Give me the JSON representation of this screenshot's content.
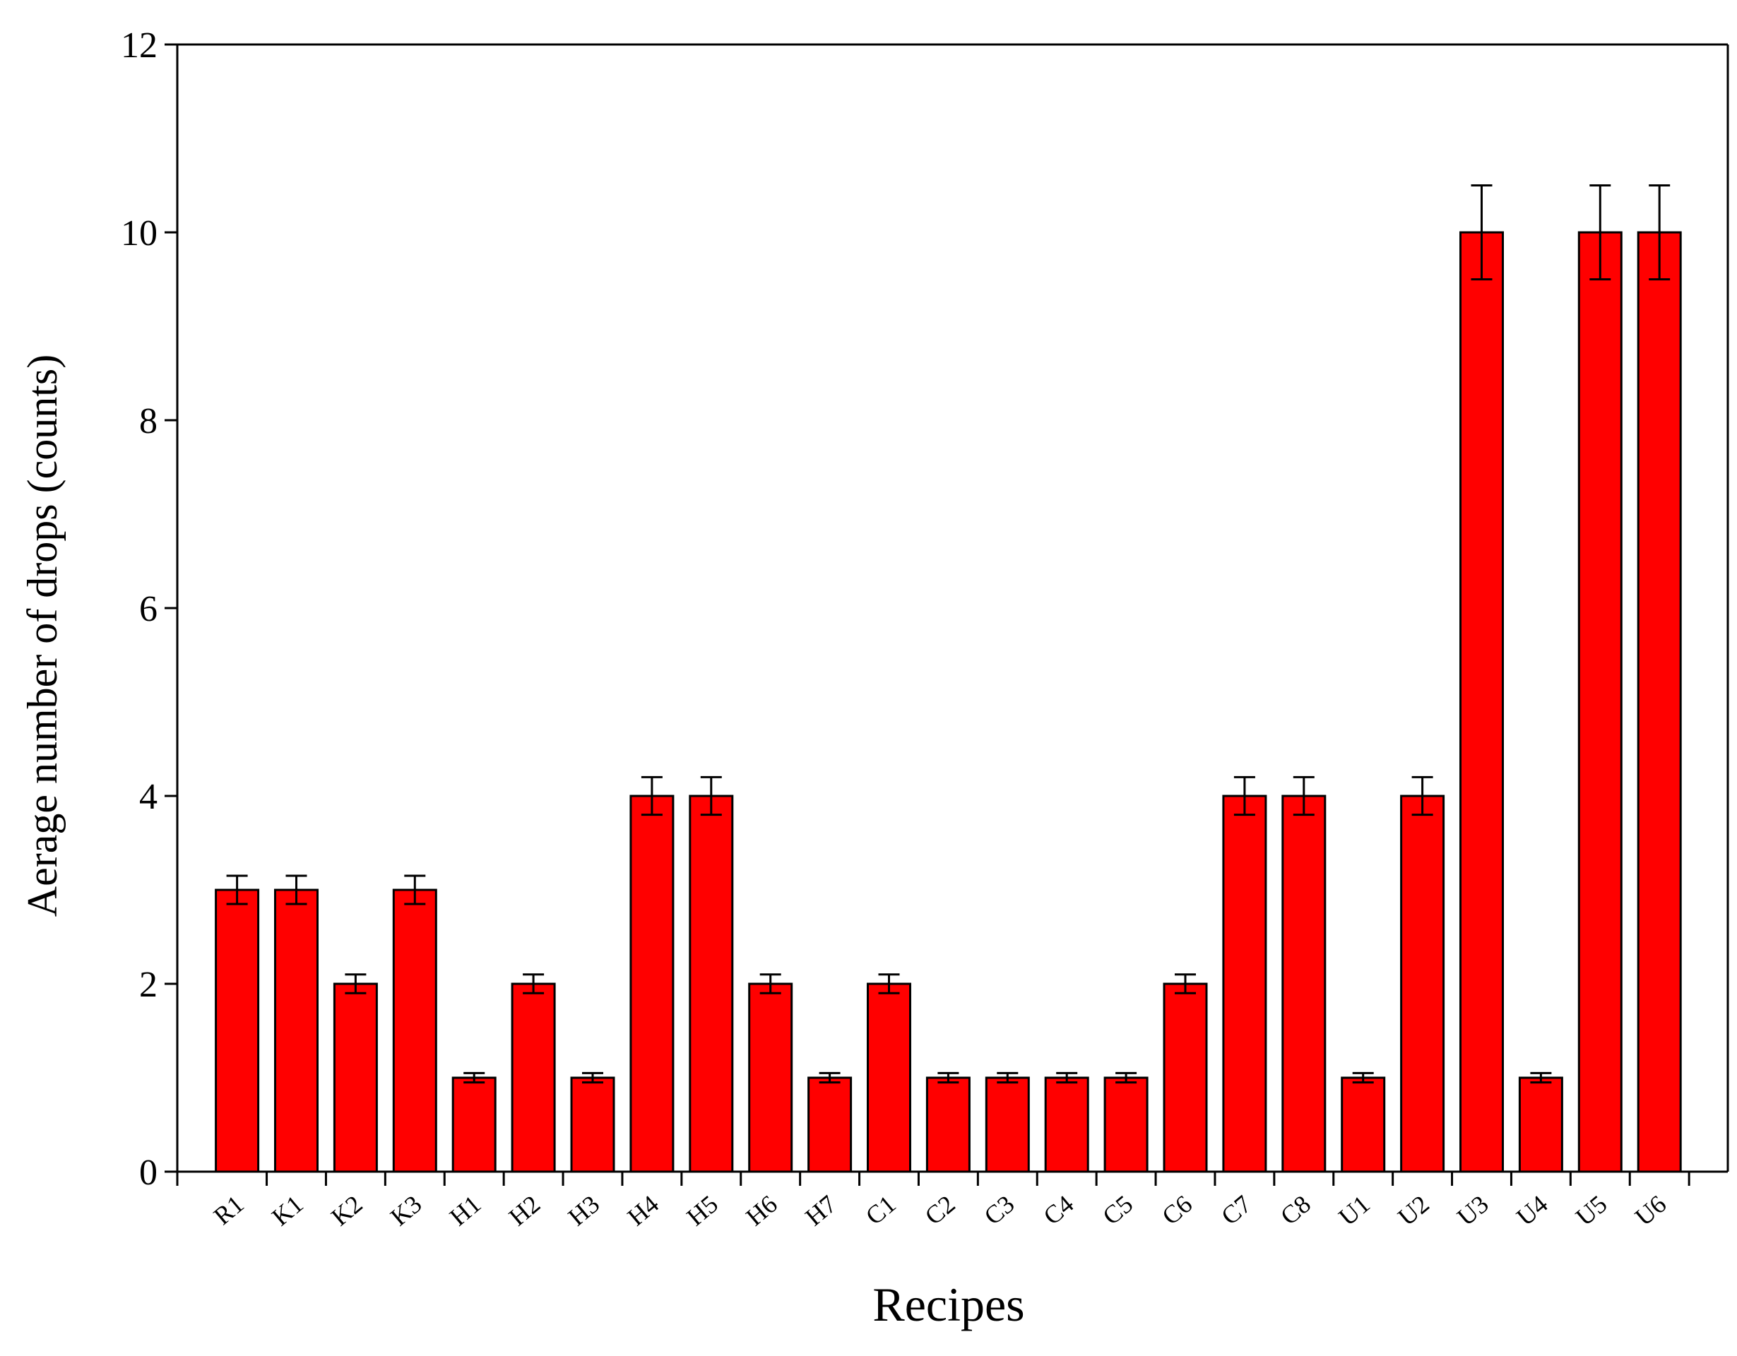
{
  "chart_data": {
    "type": "bar",
    "x_label": "Recipes",
    "y_label": "Aerage number of drops (counts)",
    "categories": [
      "R1",
      "K1",
      "K2",
      "K3",
      "H1",
      "H2",
      "H3",
      "H4",
      "H5",
      "H6",
      "H7",
      "C1",
      "C2",
      "C3",
      "C4",
      "C5",
      "C6",
      "C7",
      "C8",
      "U1",
      "U2",
      "U3",
      "U4",
      "U5",
      "U6"
    ],
    "values": [
      3,
      3,
      2,
      3,
      1,
      2,
      1,
      4,
      4,
      2,
      1,
      2,
      1,
      1,
      1,
      1,
      2,
      4,
      4,
      1,
      4,
      10,
      1,
      10,
      10
    ],
    "errors": [
      0.15,
      0.15,
      0.1,
      0.15,
      0.05,
      0.1,
      0.05,
      0.2,
      0.2,
      0.1,
      0.05,
      0.1,
      0.05,
      0.05,
      0.05,
      0.05,
      0.1,
      0.2,
      0.2,
      0.05,
      0.2,
      0.5,
      0.05,
      0.5,
      0.5
    ],
    "color": "#ff0000",
    "ylim": [
      0,
      12
    ],
    "yticks": [
      0,
      2,
      4,
      6,
      8,
      10,
      12
    ],
    "grid": false
  }
}
